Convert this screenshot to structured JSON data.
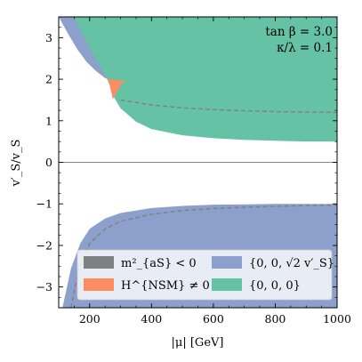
{
  "chart_data": {
    "type": "area",
    "xlabel": "|μ| [GeV]",
    "ylabel": "v′_S/v_S",
    "xlim": [
      100,
      1000
    ],
    "ylim": [
      -3.5,
      3.5
    ],
    "x_ticks": [
      200,
      400,
      600,
      800,
      1000
    ],
    "y_ticks": [
      -3,
      -2,
      -1,
      0,
      1,
      2,
      3
    ],
    "x_tick_labels": [
      "200",
      "400",
      "600",
      "800",
      "1000"
    ],
    "y_tick_labels": [
      "−3",
      "−2",
      "−1",
      "0",
      "1",
      "2",
      "3"
    ],
    "annotations": [
      "tan β = 3.0",
      "κ/λ = 0.1"
    ],
    "legend_position": "lower-center",
    "colors": {
      "tachyonic": "#808080",
      "hnsm": "#fc8d62",
      "sqrt2": "#8da0cb",
      "zero": "#66c2a5"
    },
    "legend": [
      {
        "key": "tachyonic",
        "label": "m²_{aS} < 0",
        "color": "#808080"
      },
      {
        "key": "hnsm",
        "label": "H^{NSM} ≠ 0",
        "color": "#fc8d62"
      },
      {
        "key": "sqrt2",
        "label": "{0, 0, √2 v′_S}",
        "color": "#8da0cb"
      },
      {
        "key": "zero",
        "label": "{0, 0, 0}",
        "color": "#66c2a5"
      }
    ],
    "series": [
      {
        "key": "sqrt2",
        "type": "band-upper",
        "x": [
          100,
          130,
          160,
          190,
          220,
          250,
          300,
          400,
          500,
          600,
          700,
          800,
          900,
          1000
        ],
        "y_low": [
          3.5,
          3.1,
          2.72,
          2.42,
          2.2,
          2.03,
          1.85,
          1.62,
          1.48,
          1.38,
          1.31,
          1.26,
          1.23,
          1.2
        ],
        "y_high": [
          3.5,
          3.5,
          3.5,
          3.5,
          3.5,
          3.5,
          3.5,
          3.5,
          3.5,
          3.5,
          3.5,
          3.5,
          3.5,
          3.5
        ]
      },
      {
        "key": "zero",
        "type": "band-upper",
        "x": [
          148,
          200,
          250,
          260,
          280,
          300,
          350,
          400,
          500,
          600,
          700,
          800,
          900,
          1000
        ],
        "y_low": [
          3.5,
          2.75,
          2.12,
          1.95,
          1.55,
          1.3,
          0.98,
          0.8,
          0.65,
          0.58,
          0.54,
          0.52,
          0.5,
          0.5
        ],
        "y_high": [
          3.5,
          3.5,
          3.5,
          3.5,
          3.5,
          3.5,
          3.5,
          3.5,
          3.5,
          3.5,
          3.5,
          3.5,
          3.5,
          3.5
        ]
      },
      {
        "key": "hnsm",
        "type": "region",
        "x": [
          255,
          262,
          275,
          290,
          305,
          320,
          305,
          290,
          275,
          262,
          255
        ],
        "y": [
          2.02,
          2.0,
          1.99,
          1.98,
          1.97,
          1.97,
          1.92,
          1.72,
          1.52,
          1.95,
          2.02
        ]
      },
      {
        "key": "sqrt2",
        "type": "band-lower",
        "x": [
          112,
          140,
          170,
          200,
          250,
          300,
          400,
          500,
          600,
          700,
          800,
          900,
          1000
        ],
        "y_low": [
          -3.5,
          -3.5,
          -3.5,
          -3.5,
          -3.5,
          -3.5,
          -3.5,
          -3.5,
          -3.5,
          -3.5,
          -3.5,
          -3.5,
          -3.5
        ],
        "y_high": [
          -3.5,
          -2.55,
          -1.95,
          -1.6,
          -1.35,
          -1.22,
          -1.1,
          -1.05,
          -1.02,
          -1.01,
          -1.0,
          -1.0,
          -1.0
        ]
      },
      {
        "key": "dashed-upper",
        "type": "dashed-line",
        "x": [
          300,
          400,
          500,
          600,
          700,
          800,
          900,
          1000
        ],
        "y": [
          1.5,
          1.38,
          1.31,
          1.27,
          1.24,
          1.22,
          1.21,
          1.2
        ]
      },
      {
        "key": "dashed-lower",
        "type": "dashed-line",
        "x": [
          140,
          150,
          170,
          200,
          250,
          300,
          400,
          500,
          600,
          700,
          800,
          900,
          1000
        ],
        "y": [
          -3.5,
          -3.1,
          -2.45,
          -1.95,
          -1.6,
          -1.42,
          -1.25,
          -1.16,
          -1.11,
          -1.08,
          -1.06,
          -1.04,
          -1.03
        ]
      }
    ]
  }
}
